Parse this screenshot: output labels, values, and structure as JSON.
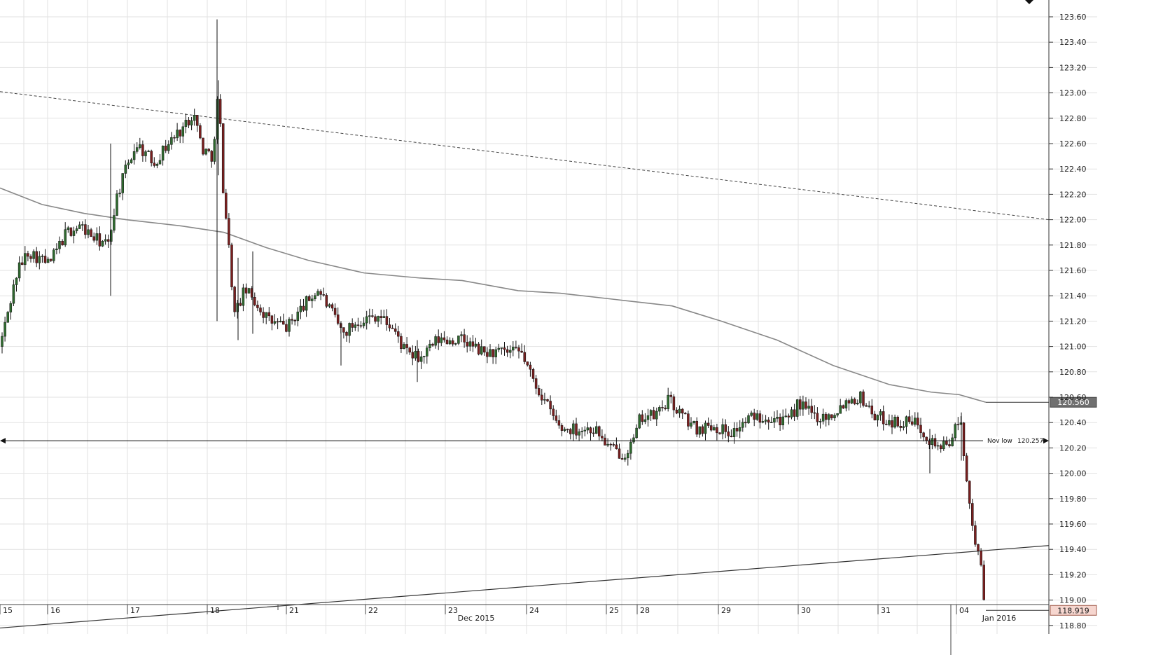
{
  "chart_data": {
    "type": "candlestick",
    "ylim": [
      118.72,
      123.72
    ],
    "y_ticks": [
      "123.60",
      "123.40",
      "123.20",
      "123.00",
      "122.80",
      "122.60",
      "122.40",
      "122.20",
      "122.00",
      "121.80",
      "121.60",
      "121.40",
      "121.20",
      "121.00",
      "120.80",
      "120.60",
      "120.40",
      "120.20",
      "120.00",
      "119.80",
      "119.60",
      "119.40",
      "119.20",
      "119.00",
      "118.80"
    ],
    "x_day_labels": [
      "15",
      "16",
      "17",
      "18",
      "21",
      "22",
      "23",
      "24",
      "25",
      "28",
      "29",
      "30",
      "31",
      "04"
    ],
    "x_month_labels": [
      "Dec 2015",
      "Jan 2016"
    ],
    "levels": {
      "nov_low": {
        "label": "Nov low",
        "value": "120.257"
      },
      "ma_last": "120.560",
      "last_price": "118.919"
    },
    "ohlc_summary": [
      {
        "day": "15",
        "open": 121.0,
        "high": 121.8,
        "low": 120.92,
        "close": 121.75
      },
      {
        "day": "16",
        "open": 121.75,
        "high": 122.1,
        "low": 121.38,
        "close": 121.8
      },
      {
        "day": "17",
        "open": 121.85,
        "high": 122.9,
        "low": 121.65,
        "close": 122.7
      },
      {
        "day": "18",
        "open": 122.7,
        "high": 123.58,
        "low": 121.05,
        "close": 121.15
      },
      {
        "day": "21",
        "open": 121.2,
        "high": 121.55,
        "low": 121.0,
        "close": 121.4
      },
      {
        "day": "22",
        "open": 121.3,
        "high": 121.32,
        "low": 120.85,
        "close": 121.1
      },
      {
        "day": "23",
        "open": 121.05,
        "high": 121.15,
        "low": 120.75,
        "close": 120.95
      },
      {
        "day": "24",
        "open": 120.95,
        "high": 121.0,
        "low": 120.25,
        "close": 120.35
      },
      {
        "day": "25",
        "open": 120.35,
        "high": 120.45,
        "low": 120.05,
        "close": 120.25
      },
      {
        "day": "28",
        "open": 120.25,
        "high": 120.62,
        "low": 120.2,
        "close": 120.5
      },
      {
        "day": "29",
        "open": 120.4,
        "high": 120.48,
        "low": 120.2,
        "close": 120.45
      },
      {
        "day": "30",
        "open": 120.45,
        "high": 120.6,
        "low": 120.35,
        "close": 120.55
      },
      {
        "day": "31",
        "open": 120.55,
        "high": 120.65,
        "low": 120.05,
        "close": 120.3
      },
      {
        "day": "04",
        "open": 120.35,
        "high": 120.48,
        "low": 118.88,
        "close": 118.92
      }
    ],
    "colors": {
      "up": "#2f6b2f",
      "down": "#7a1f1f",
      "grid": "#e2e2e2",
      "ma": "#888888",
      "trend": "#555555",
      "last_price_fill": "#f6d6cf",
      "ma_label_fill": "#707070"
    }
  }
}
